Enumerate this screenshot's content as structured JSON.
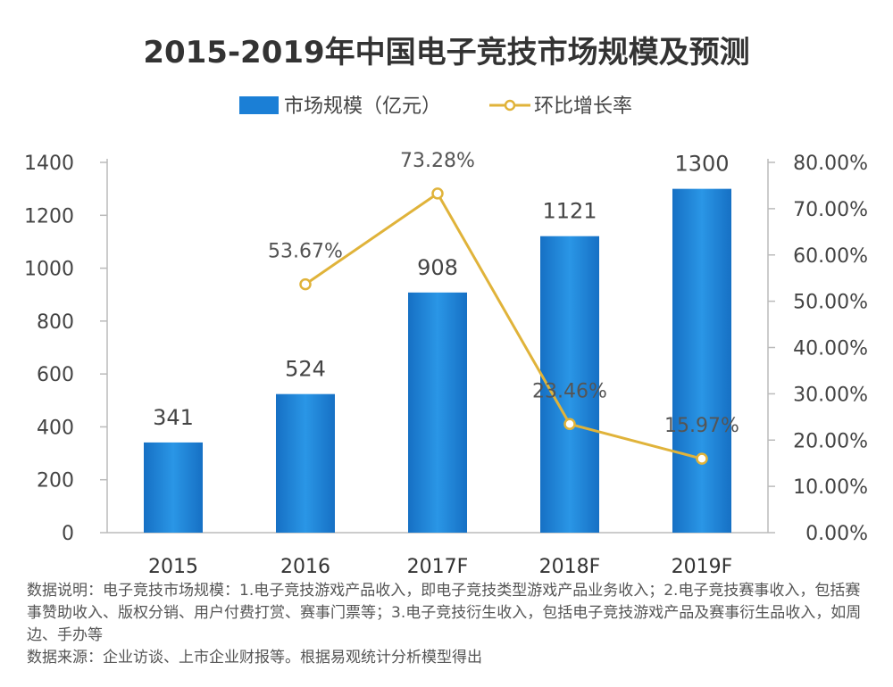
{
  "chart_data": {
    "type": "bar",
    "title": "2015-2019年中国电子竞技市场规模及预测",
    "categories": [
      "2015",
      "2016",
      "2017F",
      "2018F",
      "2019F"
    ],
    "series": [
      {
        "name": "市场规模（亿元）",
        "kind": "bar",
        "axis": "left",
        "values": [
          341,
          524,
          908,
          1121,
          1300
        ],
        "labels": [
          "341",
          "524",
          "908",
          "1121",
          "1300"
        ]
      },
      {
        "name": "环比增长率",
        "kind": "line",
        "axis": "right",
        "values": [
          null,
          53.67,
          73.28,
          23.46,
          15.97
        ],
        "labels": [
          "",
          "53.67%",
          "73.28%",
          "23.46%",
          "15.97%"
        ]
      }
    ],
    "y_left": {
      "min": 0,
      "max": 1400,
      "ticks": [
        "0",
        "200",
        "400",
        "600",
        "800",
        "1000",
        "1200",
        "1400"
      ]
    },
    "y_right": {
      "min": 0,
      "max": 80,
      "ticks": [
        "0.00%",
        "10.00%",
        "20.00%",
        "30.00%",
        "40.00%",
        "50.00%",
        "60.00%",
        "70.00%",
        "80.00%"
      ]
    },
    "legend_position": "top-center",
    "grid": false,
    "colors": {
      "bar": "#1b7fd6",
      "bar_light": "#3fa2ec",
      "line": "#e0b33a",
      "marker_fill": "#ffffff"
    }
  },
  "notes": {
    "description": "数据说明：电子竞技市场规模：1.电子竞技游戏产品收入，即电子竞技类型游戏产品业务收入；2.电子竞技赛事收入，包括赛事赞助收入、版权分销、用户付费打赏、赛事门票等；3.电子竞技衍生收入，包括电子竞技游戏产品及赛事衍生品收入，如周边、手办等",
    "source": "数据来源：企业访谈、上市企业财报等。根据易观统计分析模型得出"
  }
}
